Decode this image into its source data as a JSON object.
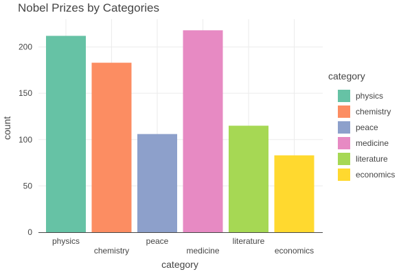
{
  "chart_data": {
    "type": "bar",
    "title": "Nobel Prizes by Categories",
    "xlabel": "category",
    "ylabel": "count",
    "categories": [
      "physics",
      "chemistry",
      "peace",
      "medicine",
      "literature",
      "economics"
    ],
    "values": [
      212,
      183,
      106,
      218,
      115,
      83
    ],
    "colors": [
      "#66c2a5",
      "#fc8d62",
      "#8da0cb",
      "#e78ac3",
      "#a6d854",
      "#ffd92f"
    ],
    "ylim": [
      0,
      230
    ],
    "yticks": [
      0,
      50,
      100,
      150,
      200
    ],
    "grid": true,
    "legend": {
      "title": "category",
      "placement": "right",
      "entries": [
        "physics",
        "chemistry",
        "peace",
        "medicine",
        "literature",
        "economics"
      ]
    }
  }
}
